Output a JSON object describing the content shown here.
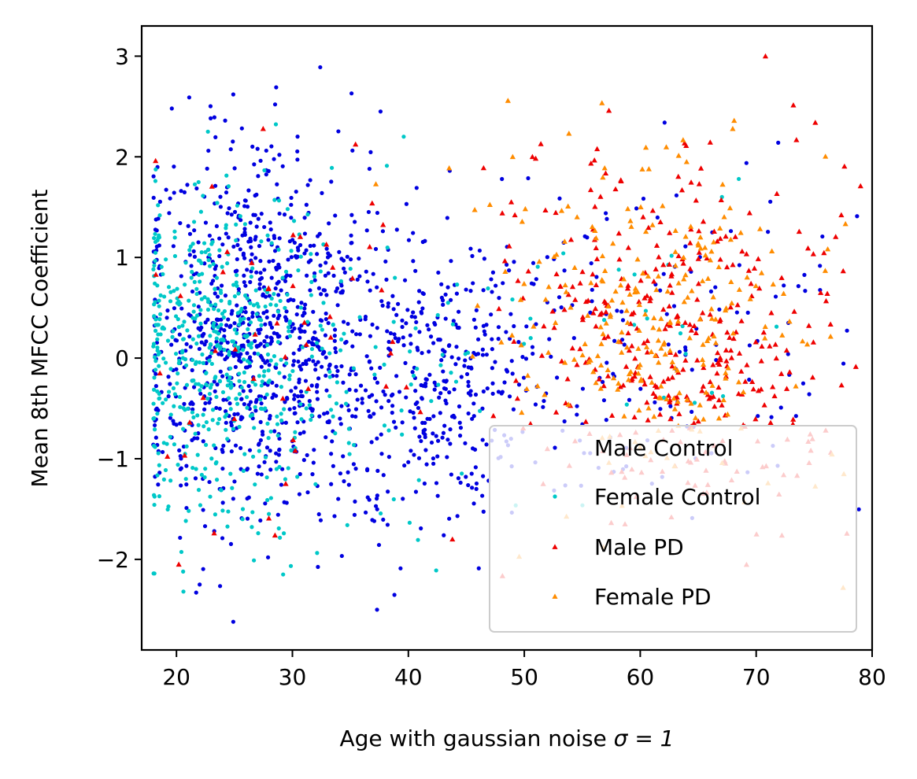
{
  "chart_data": {
    "type": "scatter",
    "title": "",
    "xlabel_main": "Age with gaussian noise",
    "xlabel_math": "σ = 1",
    "ylabel": "Mean 8th MFCC Coefficient",
    "xlim": [
      17,
      80
    ],
    "ylim": [
      -2.9,
      3.3
    ],
    "xticks": [
      20,
      30,
      40,
      50,
      60,
      70,
      80
    ],
    "yticks": [
      {
        "value": -2,
        "label": "−2"
      },
      {
        "value": -1,
        "label": "−1"
      },
      {
        "value": 0,
        "label": "0"
      },
      {
        "value": 1,
        "label": "1"
      },
      {
        "value": 2,
        "label": "2"
      },
      {
        "value": 3,
        "label": "3"
      }
    ],
    "grid": false,
    "legend_position": "lower-right",
    "series": [
      {
        "name": "Male Control",
        "color": "#0000e0",
        "marker": "circle",
        "clusters": [
          {
            "mx": 27,
            "sx": 5,
            "my": 0.2,
            "sy": 0.9,
            "n": 820
          },
          {
            "mx": 42,
            "sx": 6,
            "my": -0.1,
            "sy": 0.75,
            "n": 420
          },
          {
            "mx": 62,
            "sx": 9,
            "my": 0.1,
            "sy": 0.8,
            "n": 130
          }
        ],
        "points": [
          {
            "x": 32.4,
            "y": 2.89
          },
          {
            "x": 28.6,
            "y": 2.69
          },
          {
            "x": 19.6,
            "y": 2.48
          },
          {
            "x": 21.1,
            "y": 2.59
          },
          {
            "x": 24.9,
            "y": 2.62
          },
          {
            "x": 35.1,
            "y": 2.63
          },
          {
            "x": 24.2,
            "y": 2.36
          },
          {
            "x": 37.6,
            "y": 2.45
          },
          {
            "x": 62.1,
            "y": 2.34
          },
          {
            "x": 71.9,
            "y": 2.14
          },
          {
            "x": 78.7,
            "y": 1.41
          },
          {
            "x": 24.9,
            "y": -2.62
          },
          {
            "x": 37.3,
            "y": -2.5
          },
          {
            "x": 21.7,
            "y": -2.33
          },
          {
            "x": 22.0,
            "y": -2.25
          },
          {
            "x": 27.9,
            "y": -1.98
          }
        ]
      },
      {
        "name": "Female Control",
        "color": "#00c8c8",
        "marker": "circle",
        "clusters": [
          {
            "mx": 24,
            "sx": 4.5,
            "my": 0.0,
            "sy": 0.8,
            "n": 520
          },
          {
            "mx": 40,
            "sx": 6,
            "my": 0.0,
            "sy": 0.8,
            "n": 60
          },
          {
            "mx": 62,
            "sx": 6,
            "my": 0.2,
            "sy": 0.7,
            "n": 20
          }
        ],
        "points": [
          {
            "x": 39.6,
            "y": 2.2
          },
          {
            "x": 33.4,
            "y": 1.89
          },
          {
            "x": 18.1,
            "y": -2.14
          },
          {
            "x": 20.6,
            "y": -2.32
          },
          {
            "x": 29.2,
            "y": -2.15
          },
          {
            "x": 42.4,
            "y": -2.11
          },
          {
            "x": 68.5,
            "y": 1.78
          }
        ]
      },
      {
        "name": "Male PD",
        "color": "#ee0000",
        "marker": "triangle",
        "clusters": [
          {
            "mx": 64,
            "sx": 7,
            "my": 0.2,
            "sy": 0.85,
            "n": 380
          },
          {
            "mx": 30,
            "sx": 7,
            "my": 0.0,
            "sy": 0.9,
            "n": 50
          }
        ],
        "points": [
          {
            "x": 70.8,
            "y": 3.0
          },
          {
            "x": 57.3,
            "y": 2.46
          },
          {
            "x": 75.1,
            "y": 2.34
          },
          {
            "x": 20.2,
            "y": -2.05
          },
          {
            "x": 18.2,
            "y": 1.96
          },
          {
            "x": 50.7,
            "y": 2.0
          },
          {
            "x": 79.0,
            "y": 1.71
          },
          {
            "x": 28.5,
            "y": -1.76
          },
          {
            "x": 43.8,
            "y": -1.8
          }
        ]
      },
      {
        "name": "Female PD",
        "color": "#ff8c00",
        "marker": "triangle",
        "clusters": [
          {
            "mx": 61,
            "sx": 6,
            "my": 0.3,
            "sy": 0.8,
            "n": 260
          }
        ],
        "points": [
          {
            "x": 68.1,
            "y": 2.36
          },
          {
            "x": 49.0,
            "y": 2.0
          },
          {
            "x": 37.2,
            "y": 1.73
          },
          {
            "x": 77.5,
            "y": -2.28
          },
          {
            "x": 64.0,
            "y": 1.95
          }
        ]
      }
    ]
  }
}
